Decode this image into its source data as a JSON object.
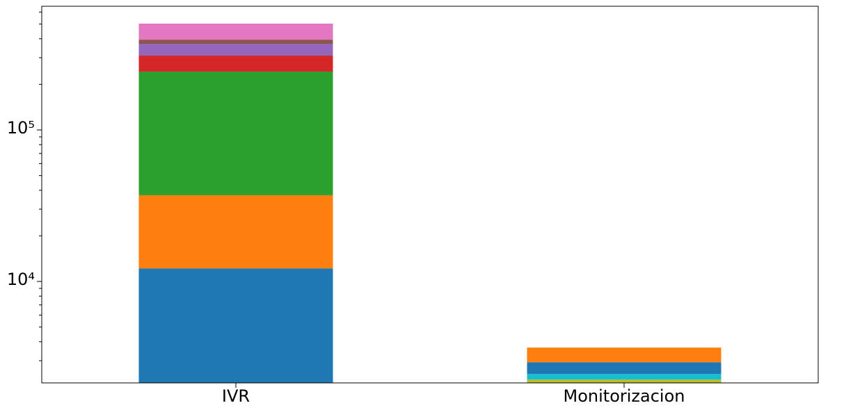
{
  "chart_data": {
    "type": "bar",
    "stacked": true,
    "log_scale": true,
    "categories": [
      "IVR",
      "Monitorizacion"
    ],
    "series": [
      {
        "color": "#1f77b4",
        "values": [
          12200,
          null
        ]
      },
      {
        "color": "#ff7f0e",
        "values": [
          24900,
          null
        ]
      },
      {
        "color": "#2ca02c",
        "values": [
          205700,
          null
        ]
      },
      {
        "color": "#d62728",
        "values": [
          66800,
          null
        ]
      },
      {
        "color": "#9467bd",
        "values": [
          61000,
          null
        ]
      },
      {
        "color": "#8c564b",
        "values": [
          23800,
          null
        ]
      },
      {
        "color": "#e377c2",
        "values": [
          109100,
          null
        ]
      },
      {
        "color": "#7f7f7f",
        "values": [
          null,
          1400
        ]
      },
      {
        "color": "#bcbd22",
        "values": [
          null,
          850
        ]
      },
      {
        "color": "#17becf",
        "values": [
          null,
          200
        ]
      },
      {
        "color": "#1f77b4",
        "values": [
          null,
          480
        ]
      },
      {
        "color": "#ff7f0e",
        "values": [
          null,
          730
        ]
      }
    ],
    "ylim": [
      2140,
      655500
    ],
    "yticks": [
      {
        "value": 10000,
        "label": "10⁴"
      },
      {
        "value": 100000,
        "label": "10⁵"
      }
    ],
    "yminorticks": [
      3000,
      4000,
      5000,
      6000,
      7000,
      8000,
      9000,
      20000,
      30000,
      40000,
      50000,
      60000,
      70000,
      80000,
      90000,
      200000,
      300000,
      400000,
      500000,
      600000
    ]
  }
}
